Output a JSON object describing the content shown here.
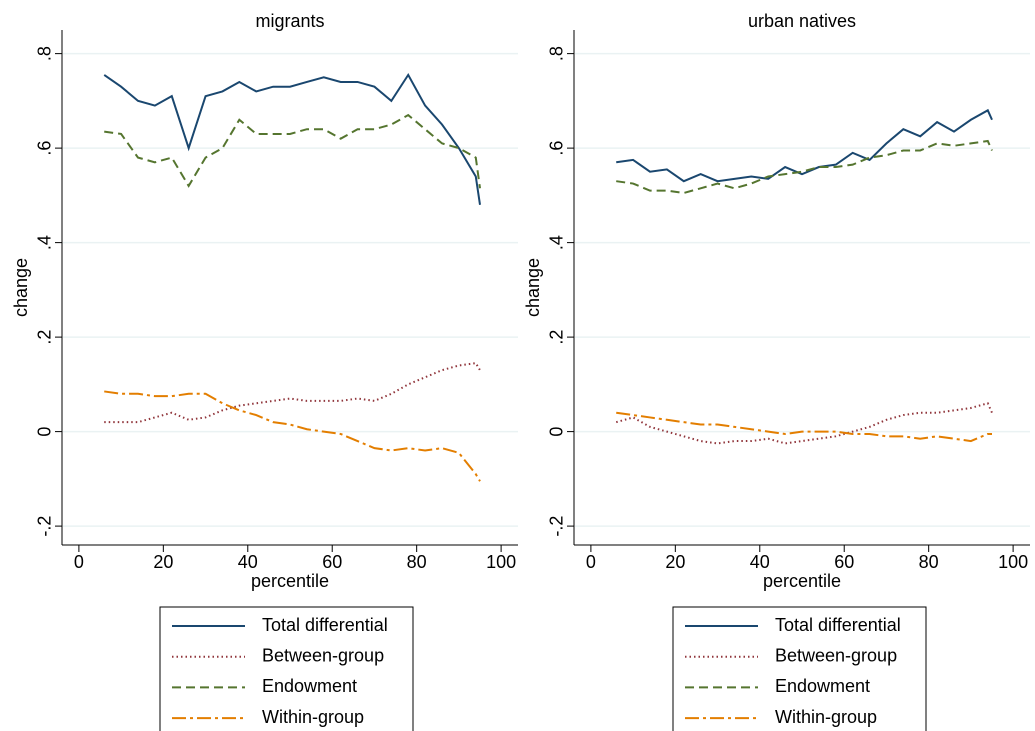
{
  "chart_data": [
    {
      "type": "line",
      "title": "migrants",
      "x_label": "percentile",
      "y_label": "change",
      "x": [
        6,
        10,
        14,
        18,
        22,
        26,
        30,
        34,
        38,
        42,
        46,
        50,
        54,
        58,
        62,
        66,
        70,
        74,
        78,
        82,
        86,
        90,
        94,
        95
      ],
      "xlim": [
        -4,
        104
      ],
      "xticks": [
        0,
        20,
        40,
        60,
        80,
        100
      ],
      "ylim": [
        -0.24,
        0.85
      ],
      "yticks": [
        {
          "value": -0.2,
          "label": "-.2"
        },
        0,
        {
          "value": 0.2,
          "label": ".2"
        },
        {
          "value": 0.4,
          "label": ".4"
        },
        {
          "value": 0.6,
          "label": ".6"
        },
        {
          "value": 0.8,
          "label": ".8"
        }
      ],
      "grid": true,
      "series": [
        {
          "name": "Total differential",
          "color": "#1a476f",
          "line_style": "solid",
          "values": [
            0.755,
            0.73,
            0.7,
            0.69,
            0.71,
            0.6,
            0.71,
            0.72,
            0.74,
            0.72,
            0.73,
            0.73,
            0.74,
            0.75,
            0.74,
            0.74,
            0.73,
            0.7,
            0.755,
            0.69,
            0.65,
            0.6,
            0.54,
            0.48
          ]
        },
        {
          "name": "Between-group",
          "color": "#90353b",
          "line_style": "dotted",
          "values": [
            0.02,
            0.02,
            0.02,
            0.03,
            0.04,
            0.025,
            0.03,
            0.045,
            0.055,
            0.06,
            0.065,
            0.07,
            0.065,
            0.065,
            0.065,
            0.07,
            0.065,
            0.08,
            0.1,
            0.115,
            0.13,
            0.14,
            0.145,
            0.13
          ]
        },
        {
          "name": "Endowment",
          "color": "#55752f",
          "line_style": "dashed",
          "values": [
            0.635,
            0.63,
            0.58,
            0.57,
            0.58,
            0.52,
            0.58,
            0.6,
            0.66,
            0.63,
            0.63,
            0.63,
            0.64,
            0.64,
            0.62,
            0.64,
            0.64,
            0.65,
            0.67,
            0.64,
            0.61,
            0.6,
            0.58,
            0.515
          ]
        },
        {
          "name": "Within-group",
          "color": "#e37e00",
          "line_style": "dashdot",
          "values": [
            0.085,
            0.08,
            0.08,
            0.075,
            0.075,
            0.08,
            0.08,
            0.06,
            0.045,
            0.035,
            0.02,
            0.015,
            0.005,
            0,
            -0.005,
            -0.02,
            -0.035,
            -0.04,
            -0.035,
            -0.04,
            -0.035,
            -0.045,
            -0.09,
            -0.105
          ]
        }
      ]
    },
    {
      "type": "line",
      "title": "urban natives",
      "x_label": "percentile",
      "y_label": "change",
      "x": [
        6,
        10,
        14,
        18,
        22,
        26,
        30,
        34,
        38,
        42,
        46,
        50,
        54,
        58,
        62,
        66,
        70,
        74,
        78,
        82,
        86,
        90,
        94,
        95
      ],
      "xlim": [
        -4,
        104
      ],
      "xticks": [
        0,
        20,
        40,
        60,
        80,
        100
      ],
      "ylim": [
        -0.24,
        0.85
      ],
      "yticks": [
        {
          "value": -0.2,
          "label": "-.2"
        },
        0,
        {
          "value": 0.2,
          "label": ".2"
        },
        {
          "value": 0.4,
          "label": ".4"
        },
        {
          "value": 0.6,
          "label": ".6"
        },
        {
          "value": 0.8,
          "label": ".8"
        }
      ],
      "grid": true,
      "series": [
        {
          "name": "Total differential",
          "color": "#1a476f",
          "line_style": "solid",
          "values": [
            0.57,
            0.575,
            0.55,
            0.555,
            0.53,
            0.545,
            0.53,
            0.535,
            0.54,
            0.535,
            0.56,
            0.545,
            0.56,
            0.565,
            0.59,
            0.575,
            0.61,
            0.64,
            0.625,
            0.655,
            0.635,
            0.66,
            0.68,
            0.66
          ]
        },
        {
          "name": "Between-group",
          "color": "#90353b",
          "line_style": "dotted",
          "values": [
            0.02,
            0.03,
            0.01,
            0,
            -0.01,
            -0.02,
            -0.025,
            -0.02,
            -0.02,
            -0.015,
            -0.025,
            -0.02,
            -0.015,
            -0.01,
            0,
            0.01,
            0.025,
            0.035,
            0.04,
            0.04,
            0.045,
            0.05,
            0.06,
            0.04
          ]
        },
        {
          "name": "Endowment",
          "color": "#55752f",
          "line_style": "dashed",
          "values": [
            0.53,
            0.525,
            0.51,
            0.51,
            0.505,
            0.515,
            0.525,
            0.515,
            0.525,
            0.54,
            0.545,
            0.55,
            0.56,
            0.56,
            0.565,
            0.58,
            0.585,
            0.595,
            0.595,
            0.61,
            0.605,
            0.61,
            0.615,
            0.595
          ]
        },
        {
          "name": "Within-group",
          "color": "#e37e00",
          "line_style": "dashdot",
          "values": [
            0.04,
            0.035,
            0.03,
            0.025,
            0.02,
            0.015,
            0.015,
            0.01,
            0.005,
            0,
            -0.005,
            0,
            0,
            0,
            -0.005,
            -0.005,
            -0.01,
            -0.01,
            -0.015,
            -0.01,
            -0.015,
            -0.02,
            -0.005,
            -0.005
          ]
        }
      ]
    }
  ]
}
